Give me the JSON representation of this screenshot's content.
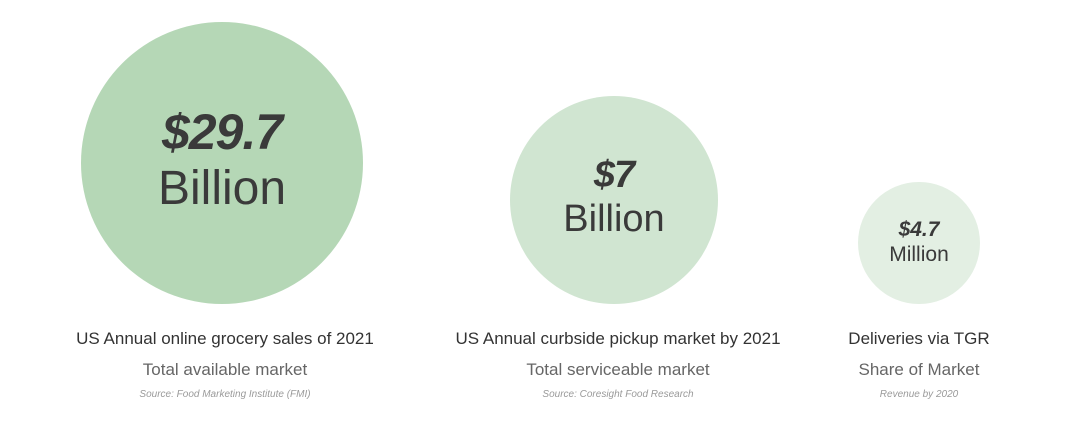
{
  "colors": {
    "circle_large": "#b5d7b6",
    "circle_medium": "#d0e5d1",
    "circle_small": "#e3efe3",
    "text_dark": "#333333",
    "text_muted": "#666666",
    "text_source": "#9a9a9a"
  },
  "stats": [
    {
      "amount": "$29.7",
      "unit": "Billion",
      "title": "US Annual online grocery sales of 2021",
      "subtitle": "Total available market",
      "source": "Source: Food Marketing Institute (FMI)"
    },
    {
      "amount": "$7",
      "unit": "Billion",
      "title": "US Annual curbside pickup market by 2021",
      "subtitle": "Total serviceable market",
      "source": "Source: Coresight Food Research"
    },
    {
      "amount": "$4.7",
      "unit": "Million",
      "title": "Deliveries via TGR",
      "subtitle": "Share of Market",
      "source": "Revenue by 2020"
    }
  ]
}
